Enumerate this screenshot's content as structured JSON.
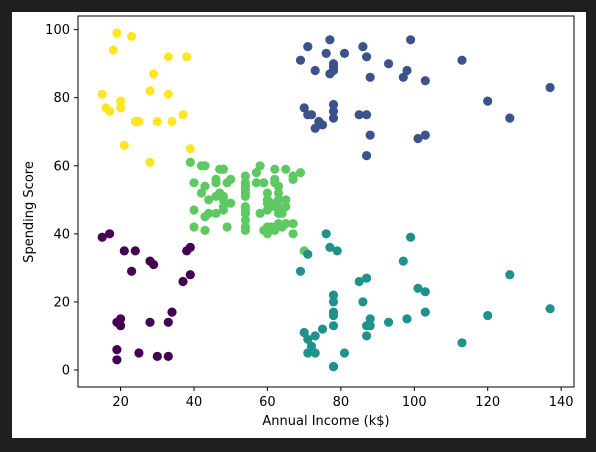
{
  "chart_data": {
    "type": "scatter",
    "title": "",
    "xlabel": "Annual Income (k$)",
    "ylabel": "Spending Score",
    "xlim": [
      8.4,
      143.5
    ],
    "ylim": [
      -5,
      104
    ],
    "xticks": [
      20,
      40,
      60,
      80,
      100,
      120,
      140
    ],
    "yticks": [
      0,
      20,
      40,
      60,
      80,
      100
    ],
    "grid": false,
    "legend": "none",
    "series": [
      {
        "color": "#fde725",
        "points": [
          [
            15,
            81
          ],
          [
            16,
            77
          ],
          [
            17,
            76
          ],
          [
            18,
            94
          ],
          [
            19,
            99
          ],
          [
            20,
            77
          ],
          [
            20,
            79
          ],
          [
            21,
            66
          ],
          [
            23,
            98
          ],
          [
            24,
            73
          ],
          [
            25,
            73
          ],
          [
            28,
            82
          ],
          [
            28,
            61
          ],
          [
            29,
            87
          ],
          [
            30,
            73
          ],
          [
            33,
            92
          ],
          [
            33,
            81
          ],
          [
            34,
            73
          ],
          [
            37,
            75
          ],
          [
            38,
            92
          ],
          [
            39,
            65
          ]
        ]
      },
      {
        "color": "#440154",
        "points": [
          [
            15,
            39
          ],
          [
            17,
            40
          ],
          [
            19,
            14
          ],
          [
            19,
            6
          ],
          [
            19,
            3
          ],
          [
            20,
            15
          ],
          [
            20,
            13
          ],
          [
            21,
            35
          ],
          [
            23,
            29
          ],
          [
            24,
            35
          ],
          [
            25,
            5
          ],
          [
            28,
            14
          ],
          [
            28,
            32
          ],
          [
            29,
            31
          ],
          [
            30,
            4
          ],
          [
            33,
            4
          ],
          [
            33,
            14
          ],
          [
            34,
            17
          ],
          [
            37,
            26
          ],
          [
            38,
            35
          ],
          [
            39,
            36
          ],
          [
            39,
            28
          ]
        ]
      },
      {
        "color": "#5ec962",
        "points": [
          [
            39,
            61
          ],
          [
            40,
            55
          ],
          [
            40,
            47
          ],
          [
            40,
            42
          ],
          [
            42,
            52
          ],
          [
            42,
            60
          ],
          [
            43,
            54
          ],
          [
            43,
            60
          ],
          [
            43,
            45
          ],
          [
            43,
            41
          ],
          [
            44,
            46
          ],
          [
            44,
            50
          ],
          [
            46,
            51
          ],
          [
            46,
            46
          ],
          [
            46,
            56
          ],
          [
            46,
            55
          ],
          [
            47,
            52
          ],
          [
            47,
            59
          ],
          [
            48,
            51
          ],
          [
            48,
            59
          ],
          [
            48,
            50
          ],
          [
            48,
            48
          ],
          [
            48,
            59
          ],
          [
            48,
            47
          ],
          [
            49,
            55
          ],
          [
            49,
            42
          ],
          [
            50,
            49
          ],
          [
            50,
            56
          ],
          [
            54,
            47
          ],
          [
            54,
            54
          ],
          [
            54,
            53
          ],
          [
            54,
            48
          ],
          [
            54,
            52
          ],
          [
            54,
            42
          ],
          [
            54,
            51
          ],
          [
            54,
            55
          ],
          [
            54,
            41
          ],
          [
            54,
            44
          ],
          [
            54,
            57
          ],
          [
            54,
            46
          ],
          [
            57,
            58
          ],
          [
            57,
            55
          ],
          [
            58,
            60
          ],
          [
            58,
            46
          ],
          [
            59,
            55
          ],
          [
            59,
            41
          ],
          [
            60,
            49
          ],
          [
            60,
            40
          ],
          [
            60,
            42
          ],
          [
            60,
            52
          ],
          [
            60,
            47
          ],
          [
            60,
            50
          ],
          [
            61,
            42
          ],
          [
            61,
            49
          ],
          [
            62,
            41
          ],
          [
            62,
            48
          ],
          [
            62,
            59
          ],
          [
            62,
            55
          ],
          [
            62,
            56
          ],
          [
            62,
            42
          ],
          [
            63,
            50
          ],
          [
            63,
            46
          ],
          [
            63,
            43
          ],
          [
            63,
            48
          ],
          [
            63,
            52
          ],
          [
            63,
            54
          ],
          [
            64,
            42
          ],
          [
            64,
            46
          ],
          [
            65,
            48
          ],
          [
            65,
            50
          ],
          [
            65,
            43
          ],
          [
            65,
            59
          ],
          [
            67,
            43
          ],
          [
            67,
            57
          ],
          [
            67,
            56
          ],
          [
            67,
            40
          ],
          [
            69,
            58
          ],
          [
            70,
            35
          ]
        ]
      },
      {
        "color": "#21918c",
        "points": [
          [
            69,
            29
          ],
          [
            71,
            34
          ],
          [
            70,
            11
          ],
          [
            71,
            9
          ],
          [
            71,
            5
          ],
          [
            72,
            7
          ],
          [
            73,
            10
          ],
          [
            73,
            5
          ],
          [
            75,
            12
          ],
          [
            76,
            40
          ],
          [
            77,
            36
          ],
          [
            78,
            22
          ],
          [
            78,
            17
          ],
          [
            78,
            20
          ],
          [
            78,
            1
          ],
          [
            78,
            16
          ],
          [
            78,
            1
          ],
          [
            78,
            13
          ],
          [
            79,
            35
          ],
          [
            81,
            5
          ],
          [
            85,
            26
          ],
          [
            86,
            20
          ],
          [
            87,
            27
          ],
          [
            87,
            13
          ],
          [
            87,
            10
          ],
          [
            88,
            13
          ],
          [
            88,
            15
          ],
          [
            93,
            14
          ],
          [
            97,
            32
          ],
          [
            98,
            15
          ],
          [
            99,
            39
          ],
          [
            101,
            24
          ],
          [
            103,
            17
          ],
          [
            103,
            23
          ],
          [
            113,
            8
          ],
          [
            120,
            16
          ],
          [
            126,
            28
          ],
          [
            137,
            18
          ]
        ]
      },
      {
        "color": "#3b528b",
        "points": [
          [
            69,
            91
          ],
          [
            70,
            77
          ],
          [
            71,
            95
          ],
          [
            71,
            75
          ],
          [
            72,
            75
          ],
          [
            73,
            71
          ],
          [
            73,
            88
          ],
          [
            74,
            73
          ],
          [
            75,
            72
          ],
          [
            76,
            93
          ],
          [
            77,
            87
          ],
          [
            77,
            97
          ],
          [
            78,
            74
          ],
          [
            78,
            90
          ],
          [
            78,
            88
          ],
          [
            78,
            76
          ],
          [
            78,
            89
          ],
          [
            78,
            78
          ],
          [
            81,
            93
          ],
          [
            85,
            75
          ],
          [
            86,
            95
          ],
          [
            87,
            63
          ],
          [
            87,
            75
          ],
          [
            87,
            92
          ],
          [
            88,
            86
          ],
          [
            88,
            69
          ],
          [
            93,
            90
          ],
          [
            97,
            86
          ],
          [
            98,
            88
          ],
          [
            99,
            97
          ],
          [
            101,
            68
          ],
          [
            103,
            85
          ],
          [
            103,
            69
          ],
          [
            113,
            91
          ],
          [
            120,
            79
          ],
          [
            126,
            74
          ],
          [
            137,
            83
          ]
        ]
      }
    ]
  }
}
